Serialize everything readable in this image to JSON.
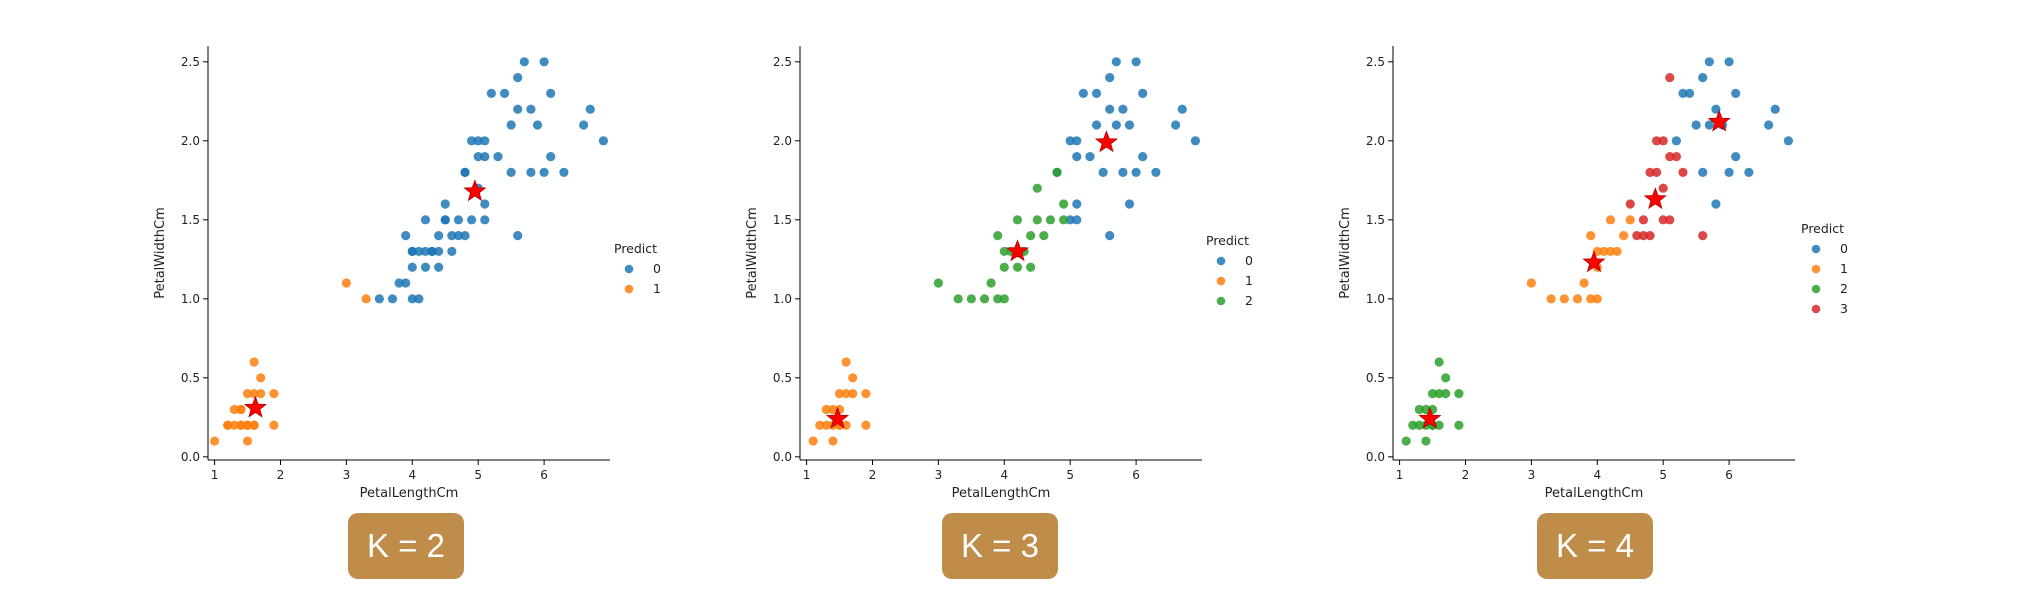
{
  "chart_data": [
    {
      "type": "scatter",
      "xlabel": "PetalLengthCm",
      "ylabel": "PetalWidthCm",
      "xticks": [
        1,
        2,
        3,
        4,
        5,
        6
      ],
      "yticks": [
        0.0,
        0.5,
        1.0,
        1.5,
        2.0,
        2.5
      ],
      "xlim": [
        0.9,
        7.0
      ],
      "ylim": [
        -0.02,
        2.6
      ],
      "legend": {
        "title": "Predict",
        "position": "right",
        "entries": [
          "0",
          "1"
        ]
      },
      "series": [
        {
          "name": "0",
          "color": "#1f77b4",
          "x": [
            3.5,
            3.7,
            3.8,
            3.9,
            3.9,
            4.0,
            4.0,
            4.0,
            4.0,
            4.1,
            4.1,
            4.2,
            4.2,
            4.2,
            4.3,
            4.3,
            4.4,
            4.4,
            4.4,
            4.5,
            4.5,
            4.5,
            4.6,
            4.6,
            4.7,
            4.7,
            4.8,
            4.8,
            4.8,
            4.9,
            4.9,
            5.0,
            5.0,
            5.0,
            5.1,
            5.1,
            5.1,
            5.1,
            5.2,
            5.3,
            5.4,
            5.5,
            5.5,
            5.6,
            5.6,
            5.6,
            5.7,
            5.8,
            5.8,
            5.9,
            6.0,
            6.0,
            6.1,
            6.1,
            6.3,
            6.6,
            6.7,
            6.9
          ],
          "y": [
            1.0,
            1.0,
            1.1,
            1.1,
            1.4,
            1.0,
            1.2,
            1.3,
            1.3,
            1.0,
            1.3,
            1.2,
            1.3,
            1.5,
            1.3,
            1.3,
            1.2,
            1.3,
            1.4,
            1.5,
            1.6,
            1.5,
            1.4,
            1.3,
            1.4,
            1.5,
            1.8,
            1.8,
            1.4,
            1.5,
            2.0,
            1.7,
            1.9,
            2.0,
            1.5,
            1.6,
            1.9,
            2.0,
            2.3,
            1.9,
            2.3,
            2.1,
            1.8,
            2.4,
            2.2,
            1.4,
            2.5,
            1.8,
            2.2,
            2.1,
            1.8,
            2.5,
            2.3,
            1.9,
            1.8,
            2.1,
            2.2,
            2.0
          ]
        },
        {
          "name": "1",
          "color": "#ff7f0e",
          "x": [
            1.0,
            1.2,
            1.2,
            1.3,
            1.3,
            1.4,
            1.4,
            1.4,
            1.4,
            1.5,
            1.5,
            1.5,
            1.5,
            1.6,
            1.6,
            1.6,
            1.6,
            1.7,
            1.7,
            1.9,
            1.9,
            3.0,
            3.3
          ],
          "y": [
            0.1,
            0.2,
            0.2,
            0.2,
            0.3,
            0.2,
            0.2,
            0.3,
            0.3,
            0.2,
            0.4,
            0.1,
            0.2,
            0.2,
            0.2,
            0.6,
            0.4,
            0.4,
            0.5,
            0.2,
            0.4,
            1.1,
            1.0
          ]
        }
      ],
      "centroids": [
        {
          "x": 4.95,
          "y": 1.68
        },
        {
          "x": 1.62,
          "y": 0.31
        }
      ],
      "centroid_color": "#ff0000"
    },
    {
      "type": "scatter",
      "xlabel": "PetalLengthCm",
      "ylabel": "PetalWidthCm",
      "xticks": [
        1,
        2,
        3,
        4,
        5,
        6
      ],
      "yticks": [
        0.0,
        0.5,
        1.0,
        1.5,
        2.0,
        2.5
      ],
      "xlim": [
        0.9,
        7.0
      ],
      "ylim": [
        -0.02,
        2.6
      ],
      "legend": {
        "title": "Predict",
        "position": "right",
        "entries": [
          "0",
          "1",
          "2"
        ]
      },
      "series": [
        {
          "name": "0",
          "color": "#1f77b4",
          "x": [
            4.8,
            5.0,
            5.0,
            5.1,
            5.1,
            5.1,
            5.1,
            5.2,
            5.3,
            5.4,
            5.4,
            5.5,
            5.6,
            5.6,
            5.6,
            5.7,
            5.7,
            5.8,
            5.8,
            5.9,
            5.9,
            6.0,
            6.0,
            6.1,
            6.1,
            6.3,
            6.6,
            6.7,
            6.9
          ],
          "y": [
            1.8,
            1.5,
            2.0,
            1.5,
            1.6,
            1.9,
            2.0,
            2.3,
            1.9,
            2.3,
            2.1,
            1.8,
            2.4,
            2.2,
            1.4,
            2.5,
            2.1,
            1.8,
            2.2,
            2.1,
            1.6,
            1.8,
            2.5,
            2.3,
            1.9,
            1.8,
            2.1,
            2.2,
            2.0
          ]
        },
        {
          "name": "1",
          "color": "#ff7f0e",
          "x": [
            1.1,
            1.2,
            1.3,
            1.3,
            1.4,
            1.4,
            1.4,
            1.5,
            1.5,
            1.5,
            1.5,
            1.6,
            1.6,
            1.6,
            1.7,
            1.7,
            1.9,
            1.9
          ],
          "y": [
            0.1,
            0.2,
            0.2,
            0.3,
            0.2,
            0.3,
            0.1,
            0.2,
            0.4,
            0.2,
            0.3,
            0.2,
            0.6,
            0.4,
            0.4,
            0.5,
            0.2,
            0.4
          ]
        },
        {
          "name": "2",
          "color": "#2ca02c",
          "x": [
            3.0,
            3.3,
            3.5,
            3.7,
            3.8,
            3.9,
            3.9,
            4.0,
            4.0,
            4.0,
            4.1,
            4.2,
            4.2,
            4.3,
            4.4,
            4.4,
            4.5,
            4.5,
            4.6,
            4.7,
            4.8,
            4.9,
            4.9
          ],
          "y": [
            1.1,
            1.0,
            1.0,
            1.0,
            1.1,
            1.4,
            1.0,
            1.3,
            1.2,
            1.0,
            1.3,
            1.5,
            1.2,
            1.3,
            1.4,
            1.2,
            1.5,
            1.7,
            1.4,
            1.5,
            1.8,
            1.5,
            1.6
          ]
        }
      ],
      "centroids": [
        {
          "x": 5.55,
          "y": 1.99
        },
        {
          "x": 1.47,
          "y": 0.24
        },
        {
          "x": 4.2,
          "y": 1.3
        }
      ],
      "centroid_color": "#ff0000"
    },
    {
      "type": "scatter",
      "xlabel": "PetalLengthCm",
      "ylabel": "PetalWidthCm",
      "xticks": [
        1,
        2,
        3,
        4,
        5,
        6
      ],
      "yticks": [
        0.0,
        0.5,
        1.0,
        1.5,
        2.0,
        2.5
      ],
      "xlim": [
        0.9,
        7.0
      ],
      "ylim": [
        -0.02,
        2.6
      ],
      "legend": {
        "title": "Predict",
        "position": "right",
        "entries": [
          "0",
          "1",
          "2",
          "3"
        ]
      },
      "series": [
        {
          "name": "0",
          "color": "#1f77b4",
          "x": [
            5.2,
            5.3,
            5.4,
            5.5,
            5.6,
            5.6,
            5.7,
            5.7,
            5.8,
            5.8,
            5.9,
            6.0,
            6.0,
            6.1,
            6.1,
            6.3,
            6.6,
            6.7,
            6.9
          ],
          "y": [
            2.0,
            2.3,
            2.3,
            2.1,
            2.4,
            1.8,
            2.5,
            2.1,
            1.6,
            2.2,
            2.1,
            1.8,
            2.5,
            2.3,
            1.9,
            1.8,
            2.1,
            2.2,
            2.0
          ]
        },
        {
          "name": "1",
          "color": "#ff7f0e",
          "x": [
            3.0,
            3.3,
            3.5,
            3.7,
            3.8,
            3.9,
            3.9,
            4.0,
            4.0,
            4.0,
            4.1,
            4.2,
            4.2,
            4.3,
            4.4,
            4.5
          ],
          "y": [
            1.1,
            1.0,
            1.0,
            1.0,
            1.1,
            1.4,
            1.0,
            1.3,
            1.2,
            1.0,
            1.3,
            1.5,
            1.3,
            1.3,
            1.4,
            1.5
          ]
        },
        {
          "name": "2",
          "color": "#2ca02c",
          "x": [
            1.1,
            1.2,
            1.3,
            1.3,
            1.4,
            1.4,
            1.4,
            1.5,
            1.5,
            1.5,
            1.5,
            1.6,
            1.6,
            1.6,
            1.7,
            1.7,
            1.9,
            1.9
          ],
          "y": [
            0.1,
            0.2,
            0.2,
            0.3,
            0.2,
            0.3,
            0.1,
            0.2,
            0.4,
            0.2,
            0.3,
            0.2,
            0.6,
            0.4,
            0.4,
            0.5,
            0.2,
            0.4
          ]
        },
        {
          "name": "3",
          "color": "#d62728",
          "x": [
            4.5,
            4.6,
            4.7,
            4.7,
            4.8,
            4.8,
            4.9,
            4.9,
            5.0,
            5.0,
            5.0,
            5.1,
            5.1,
            5.1,
            5.2,
            5.3,
            5.6
          ],
          "y": [
            1.6,
            1.4,
            1.4,
            1.5,
            1.8,
            1.4,
            1.8,
            2.0,
            1.5,
            1.7,
            2.0,
            1.5,
            1.9,
            2.4,
            1.9,
            1.8,
            1.4
          ]
        }
      ],
      "centroids": [
        {
          "x": 5.85,
          "y": 2.12
        },
        {
          "x": 3.95,
          "y": 1.23
        },
        {
          "x": 1.46,
          "y": 0.24
        },
        {
          "x": 4.88,
          "y": 1.63
        }
      ],
      "centroid_color": "#ff0000"
    }
  ],
  "badges": [
    "K = 2",
    "K = 3",
    "K = 4"
  ]
}
